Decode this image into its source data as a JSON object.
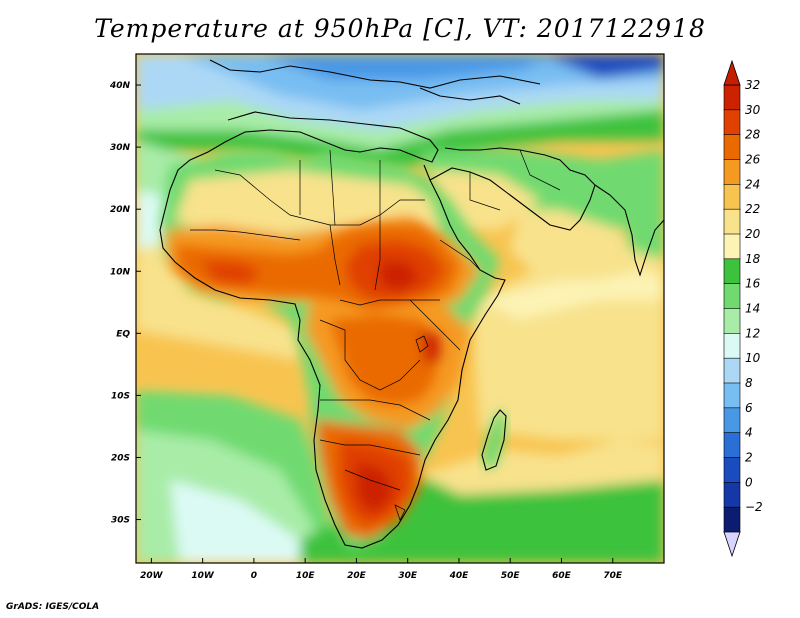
{
  "title": "Temperature at 950hPa [C], VT: 2017122918",
  "footer": "GrADS: IGES/COLA",
  "map": {
    "lon_range": [
      -23,
      80
    ],
    "lat_range": [
      -37,
      45
    ],
    "lon_labels": [
      "20W",
      "10W",
      "0",
      "10E",
      "20E",
      "30E",
      "40E",
      "50E",
      "60E",
      "70E"
    ],
    "lon_values": [
      -20,
      -10,
      0,
      10,
      20,
      30,
      40,
      50,
      60,
      70
    ],
    "lat_labels": [
      "40N",
      "30N",
      "20N",
      "10N",
      "EQ",
      "10S",
      "20S",
      "30S"
    ],
    "lat_values": [
      40,
      30,
      20,
      10,
      0,
      -10,
      -20,
      -30
    ]
  },
  "colorbar": {
    "labels": [
      "32",
      "30",
      "28",
      "26",
      "24",
      "22",
      "20",
      "18",
      "16",
      "14",
      "12",
      "10",
      "8",
      "6",
      "4",
      "2",
      "0",
      "−2"
    ],
    "colors": [
      "#cc2200",
      "#e04000",
      "#ea6a00",
      "#f59a20",
      "#f8c450",
      "#f8e28c",
      "#fcf3b4",
      "#3cc23c",
      "#70da70",
      "#a8eca8",
      "#dcfaf4",
      "#acd8f6",
      "#78bef2",
      "#4898e6",
      "#2a6ed6",
      "#1a4cc0",
      "#1438a8",
      "#0c1c70"
    ],
    "over_color": "#c81e00",
    "under_color": "#d8d4ff"
  }
}
